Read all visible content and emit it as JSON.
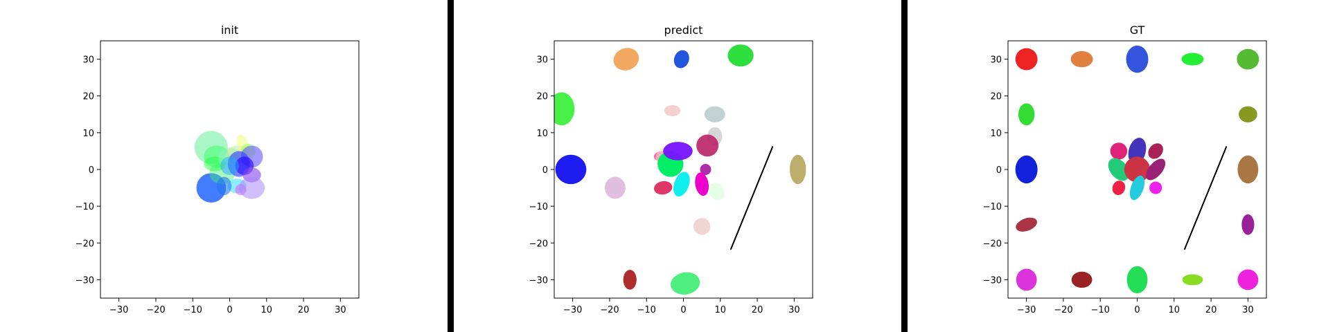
{
  "figure": {
    "divider_color": "#000000"
  },
  "chart_data": [
    {
      "type": "scatter",
      "title": "init",
      "xlabel": "",
      "ylabel": "",
      "xlim": [
        -35,
        35
      ],
      "ylim": [
        -35,
        35
      ],
      "xticks": [
        -30,
        -20,
        -10,
        0,
        10,
        20,
        30
      ],
      "yticks": [
        -30,
        -20,
        -10,
        0,
        10,
        20,
        30
      ],
      "xtick_labels": [
        "−30",
        "−20",
        "−10",
        "0",
        "10",
        "20",
        "30"
      ],
      "ytick_labels": [
        "−30",
        "−20",
        "−10",
        "0",
        "10",
        "20",
        "30"
      ],
      "grid": false,
      "lines": [],
      "ellipses": [
        {
          "x": -5.0,
          "y": 6.0,
          "rx": 4.5,
          "ry": 4.5,
          "angle": 0,
          "color": "#66ee99",
          "opacity": 0.55
        },
        {
          "x": -3.5,
          "y": 3.5,
          "rx": 3.5,
          "ry": 3.0,
          "angle": 0,
          "color": "#33ff66",
          "opacity": 0.5
        },
        {
          "x": -5.0,
          "y": -5.0,
          "rx": 4.0,
          "ry": 4.0,
          "angle": 0,
          "color": "#2266ff",
          "opacity": 0.85
        },
        {
          "x": -2.0,
          "y": -1.0,
          "rx": 3.5,
          "ry": 3.0,
          "angle": 0,
          "color": "#44ee77",
          "opacity": 0.45
        },
        {
          "x": -4.0,
          "y": 1.5,
          "rx": 3.0,
          "ry": 2.0,
          "angle": 0,
          "color": "#22ff44",
          "opacity": 0.5
        },
        {
          "x": 0.0,
          "y": 3.0,
          "rx": 3.0,
          "ry": 3.0,
          "angle": 0,
          "color": "#99eecc",
          "opacity": 0.5
        },
        {
          "x": 2.0,
          "y": 4.0,
          "rx": 3.0,
          "ry": 2.5,
          "angle": 0,
          "color": "#bbee88",
          "opacity": 0.5
        },
        {
          "x": 3.5,
          "y": 7.0,
          "rx": 1.5,
          "ry": 2.5,
          "angle": -20,
          "color": "#eeff88",
          "opacity": 0.6
        },
        {
          "x": 5.0,
          "y": 5.0,
          "rx": 2.0,
          "ry": 2.0,
          "angle": 0,
          "color": "#99ff66",
          "opacity": 0.6
        },
        {
          "x": 6.0,
          "y": 3.5,
          "rx": 3.0,
          "ry": 3.0,
          "angle": 0,
          "color": "#6655ff",
          "opacity": 0.6
        },
        {
          "x": 2.5,
          "y": 1.5,
          "rx": 3.0,
          "ry": 3.5,
          "angle": 0,
          "color": "#3344ff",
          "opacity": 0.65
        },
        {
          "x": 4.0,
          "y": 1.0,
          "rx": 2.5,
          "ry": 2.5,
          "angle": 0,
          "color": "#2200ff",
          "opacity": 0.6
        },
        {
          "x": 0.0,
          "y": 1.0,
          "rx": 2.5,
          "ry": 2.5,
          "angle": 0,
          "color": "#22aaff",
          "opacity": 0.5
        },
        {
          "x": 6.0,
          "y": -1.5,
          "rx": 2.5,
          "ry": 2.0,
          "angle": 0,
          "color": "#8844ee",
          "opacity": 0.6
        },
        {
          "x": 2.0,
          "y": -4.5,
          "rx": 2.5,
          "ry": 2.0,
          "angle": 0,
          "color": "#44ddff",
          "opacity": 0.6
        },
        {
          "x": -1.5,
          "y": -4.5,
          "rx": 2.0,
          "ry": 2.5,
          "angle": 0,
          "color": "#2277ee",
          "opacity": 0.6
        },
        {
          "x": 3.0,
          "y": -5.5,
          "rx": 1.5,
          "ry": 1.5,
          "angle": 0,
          "color": "#dd66ee",
          "opacity": 0.6
        },
        {
          "x": 6.0,
          "y": -5.0,
          "rx": 3.5,
          "ry": 3.0,
          "angle": 0,
          "color": "#aa88ff",
          "opacity": 0.55
        }
      ]
    },
    {
      "type": "scatter",
      "title": "predict",
      "xlabel": "",
      "ylabel": "",
      "xlim": [
        -35,
        35
      ],
      "ylim": [
        -35,
        35
      ],
      "xticks": [
        -30,
        -20,
        -10,
        0,
        10,
        20,
        30
      ],
      "yticks": [
        -30,
        -20,
        -10,
        0,
        10,
        20,
        30
      ],
      "xtick_labels": [
        "−30",
        "−20",
        "−10",
        "0",
        "10",
        "20",
        "30"
      ],
      "ytick_labels": [
        "−30",
        "−20",
        "−10",
        "0",
        "10",
        "20",
        "30"
      ],
      "grid": false,
      "lines": [
        {
          "x": [
            12.8,
            24.2
          ],
          "y": [
            -21.8,
            6.3
          ],
          "color": "#000000"
        }
      ],
      "ellipses": [
        {
          "x": -15.5,
          "y": 30.0,
          "rx": 3.5,
          "ry": 3.0,
          "angle": -20,
          "color": "#f0a050",
          "opacity": 0.9
        },
        {
          "x": -0.5,
          "y": 30.0,
          "rx": 2.0,
          "ry": 2.5,
          "angle": 20,
          "color": "#2255dd",
          "opacity": 1.0
        },
        {
          "x": 15.5,
          "y": 31.0,
          "rx": 3.5,
          "ry": 3.0,
          "angle": 0,
          "color": "#22dd33",
          "opacity": 0.95
        },
        {
          "x": -33.0,
          "y": 16.5,
          "rx": 3.5,
          "ry": 4.5,
          "angle": 0,
          "color": "#33ee33",
          "opacity": 0.9
        },
        {
          "x": -3.0,
          "y": 16.0,
          "rx": 2.2,
          "ry": 1.5,
          "angle": 0,
          "color": "#eebbbb",
          "opacity": 0.7
        },
        {
          "x": 8.5,
          "y": 15.0,
          "rx": 2.8,
          "ry": 2.2,
          "angle": 0,
          "color": "#bbcccc",
          "opacity": 0.9
        },
        {
          "x": 8.5,
          "y": 9.0,
          "rx": 2.0,
          "ry": 2.5,
          "angle": 0,
          "color": "#cccccc",
          "opacity": 0.8
        },
        {
          "x": -30.5,
          "y": 0.0,
          "rx": 4.2,
          "ry": 4.0,
          "angle": 0,
          "color": "#1111ee",
          "opacity": 0.95
        },
        {
          "x": 31.0,
          "y": 0.0,
          "rx": 2.2,
          "ry": 4.0,
          "angle": 0,
          "color": "#bbaa66",
          "opacity": 0.95
        },
        {
          "x": -5.5,
          "y": 3.5,
          "rx": 2.5,
          "ry": 1.5,
          "angle": 0,
          "color": "#ff44aa",
          "opacity": 0.85
        },
        {
          "x": -5.0,
          "y": 3.0,
          "rx": 2.5,
          "ry": 3.0,
          "angle": 0,
          "color": "#f0e0c0",
          "opacity": 0.6
        },
        {
          "x": -3.5,
          "y": 1.5,
          "rx": 3.5,
          "ry": 3.5,
          "angle": 0,
          "color": "#00ee66",
          "opacity": 1.0
        },
        {
          "x": -1.5,
          "y": 5.0,
          "rx": 4.0,
          "ry": 2.5,
          "angle": 0,
          "color": "#7711ff",
          "opacity": 0.95
        },
        {
          "x": 6.5,
          "y": 6.5,
          "rx": 3.0,
          "ry": 3.0,
          "angle": 0,
          "color": "#bb2266",
          "opacity": 0.9
        },
        {
          "x": 6.0,
          "y": 0.0,
          "rx": 1.5,
          "ry": 1.5,
          "angle": 0,
          "color": "#aa22aa",
          "opacity": 0.95
        },
        {
          "x": -5.5,
          "y": -5.0,
          "rx": 2.5,
          "ry": 1.8,
          "angle": -10,
          "color": "#dd2255",
          "opacity": 0.9
        },
        {
          "x": -0.5,
          "y": -4.0,
          "rx": 2.0,
          "ry": 3.5,
          "angle": 20,
          "color": "#11eeee",
          "opacity": 1.0
        },
        {
          "x": 5.0,
          "y": -4.0,
          "rx": 1.8,
          "ry": 3.2,
          "angle": -10,
          "color": "#ee00cc",
          "opacity": 1.0
        },
        {
          "x": 9.0,
          "y": -6.0,
          "rx": 2.0,
          "ry": 2.5,
          "angle": -30,
          "color": "#ddffdd",
          "opacity": 0.8
        },
        {
          "x": -18.5,
          "y": -5.0,
          "rx": 2.8,
          "ry": 3.0,
          "angle": 0,
          "color": "#ddbbdd",
          "opacity": 0.95
        },
        {
          "x": 5.0,
          "y": -15.5,
          "rx": 2.3,
          "ry": 2.3,
          "angle": 0,
          "color": "#f0d0d0",
          "opacity": 0.9
        },
        {
          "x": -14.5,
          "y": -30.0,
          "rx": 1.8,
          "ry": 2.7,
          "angle": 0,
          "color": "#aa2222",
          "opacity": 0.95
        },
        {
          "x": 0.5,
          "y": -31.0,
          "rx": 4.0,
          "ry": 3.0,
          "angle": -10,
          "color": "#44ee77",
          "opacity": 0.95
        }
      ]
    },
    {
      "type": "scatter",
      "title": "GT",
      "xlabel": "",
      "ylabel": "",
      "xlim": [
        -35,
        35
      ],
      "ylim": [
        -35,
        35
      ],
      "xticks": [
        -30,
        -20,
        -10,
        0,
        10,
        20,
        30
      ],
      "yticks": [
        -30,
        -20,
        -10,
        0,
        10,
        20,
        30
      ],
      "xtick_labels": [
        "−30",
        "−20",
        "−10",
        "0",
        "10",
        "20",
        "30"
      ],
      "ytick_labels": [
        "−30",
        "−20",
        "−10",
        "0",
        "10",
        "20",
        "30"
      ],
      "grid": false,
      "lines": [
        {
          "x": [
            12.8,
            24.2
          ],
          "y": [
            -21.8,
            6.3
          ],
          "color": "#000000"
        }
      ],
      "ellipses": [
        {
          "x": -30.0,
          "y": 30.0,
          "rx": 3.0,
          "ry": 3.0,
          "angle": 0,
          "color": "#ee2222",
          "opacity": 1.0
        },
        {
          "x": -15.0,
          "y": 30.0,
          "rx": 3.0,
          "ry": 2.2,
          "angle": 0,
          "color": "#e08040",
          "opacity": 1.0
        },
        {
          "x": 0.0,
          "y": 30.0,
          "rx": 3.0,
          "ry": 3.7,
          "angle": 0,
          "color": "#3355dd",
          "opacity": 1.0
        },
        {
          "x": 15.0,
          "y": 30.0,
          "rx": 3.0,
          "ry": 1.7,
          "angle": 0,
          "color": "#22ee33",
          "opacity": 1.0
        },
        {
          "x": 30.0,
          "y": 30.0,
          "rx": 3.0,
          "ry": 2.8,
          "angle": 0,
          "color": "#55bb33",
          "opacity": 1.0
        },
        {
          "x": -30.0,
          "y": 15.0,
          "rx": 2.2,
          "ry": 3.0,
          "angle": 0,
          "color": "#33dd33",
          "opacity": 1.0
        },
        {
          "x": 30.0,
          "y": 15.0,
          "rx": 2.5,
          "ry": 2.2,
          "angle": 0,
          "color": "#889922",
          "opacity": 1.0
        },
        {
          "x": -30.0,
          "y": 0.0,
          "rx": 3.0,
          "ry": 3.8,
          "angle": 0,
          "color": "#1122dd",
          "opacity": 1.0
        },
        {
          "x": 30.0,
          "y": 0.0,
          "rx": 2.8,
          "ry": 3.8,
          "angle": 0,
          "color": "#aa7744",
          "opacity": 1.0
        },
        {
          "x": -30.0,
          "y": -15.0,
          "rx": 3.0,
          "ry": 1.7,
          "angle": -20,
          "color": "#aa3344",
          "opacity": 1.0
        },
        {
          "x": 30.0,
          "y": -15.0,
          "rx": 1.7,
          "ry": 2.8,
          "angle": 0,
          "color": "#992299",
          "opacity": 1.0
        },
        {
          "x": -30.0,
          "y": -30.0,
          "rx": 2.8,
          "ry": 3.0,
          "angle": 0,
          "color": "#dd33dd",
          "opacity": 1.0
        },
        {
          "x": -15.0,
          "y": -30.0,
          "rx": 2.8,
          "ry": 2.2,
          "angle": 0,
          "color": "#992222",
          "opacity": 1.0
        },
        {
          "x": 0.0,
          "y": -30.0,
          "rx": 2.8,
          "ry": 3.7,
          "angle": 0,
          "color": "#22dd55",
          "opacity": 1.0
        },
        {
          "x": 15.0,
          "y": -30.0,
          "rx": 2.8,
          "ry": 1.5,
          "angle": 0,
          "color": "#88dd22",
          "opacity": 1.0
        },
        {
          "x": 30.0,
          "y": -30.0,
          "rx": 2.8,
          "ry": 2.8,
          "angle": 0,
          "color": "#ee22dd",
          "opacity": 1.0
        },
        {
          "x": -5.0,
          "y": 5.0,
          "rx": 2.3,
          "ry": 2.3,
          "angle": 0,
          "color": "#dd2277",
          "opacity": 1.0
        },
        {
          "x": 0.0,
          "y": 5.0,
          "rx": 2.3,
          "ry": 3.7,
          "angle": 15,
          "color": "#4433bb",
          "opacity": 1.0
        },
        {
          "x": 5.0,
          "y": 5.0,
          "rx": 1.8,
          "ry": 2.3,
          "angle": 40,
          "color": "#aa2255",
          "opacity": 1.0
        },
        {
          "x": -5.0,
          "y": 0.0,
          "rx": 2.3,
          "ry": 3.5,
          "angle": -40,
          "color": "#22cc77",
          "opacity": 1.0
        },
        {
          "x": 0.0,
          "y": 0.0,
          "rx": 3.5,
          "ry": 3.5,
          "angle": 0,
          "color": "#cc3344",
          "opacity": 1.0
        },
        {
          "x": 5.0,
          "y": 0.0,
          "rx": 1.8,
          "ry": 3.5,
          "angle": 40,
          "color": "#992277",
          "opacity": 1.0
        },
        {
          "x": -5.0,
          "y": -5.0,
          "rx": 1.7,
          "ry": 2.0,
          "angle": 20,
          "color": "#ee2244",
          "opacity": 1.0
        },
        {
          "x": 0.0,
          "y": -5.0,
          "rx": 1.7,
          "ry": 3.5,
          "angle": 20,
          "color": "#22ccdd",
          "opacity": 1.0
        },
        {
          "x": 5.0,
          "y": -5.0,
          "rx": 1.7,
          "ry": 1.7,
          "angle": 0,
          "color": "#ee22ee",
          "opacity": 1.0
        }
      ]
    }
  ]
}
